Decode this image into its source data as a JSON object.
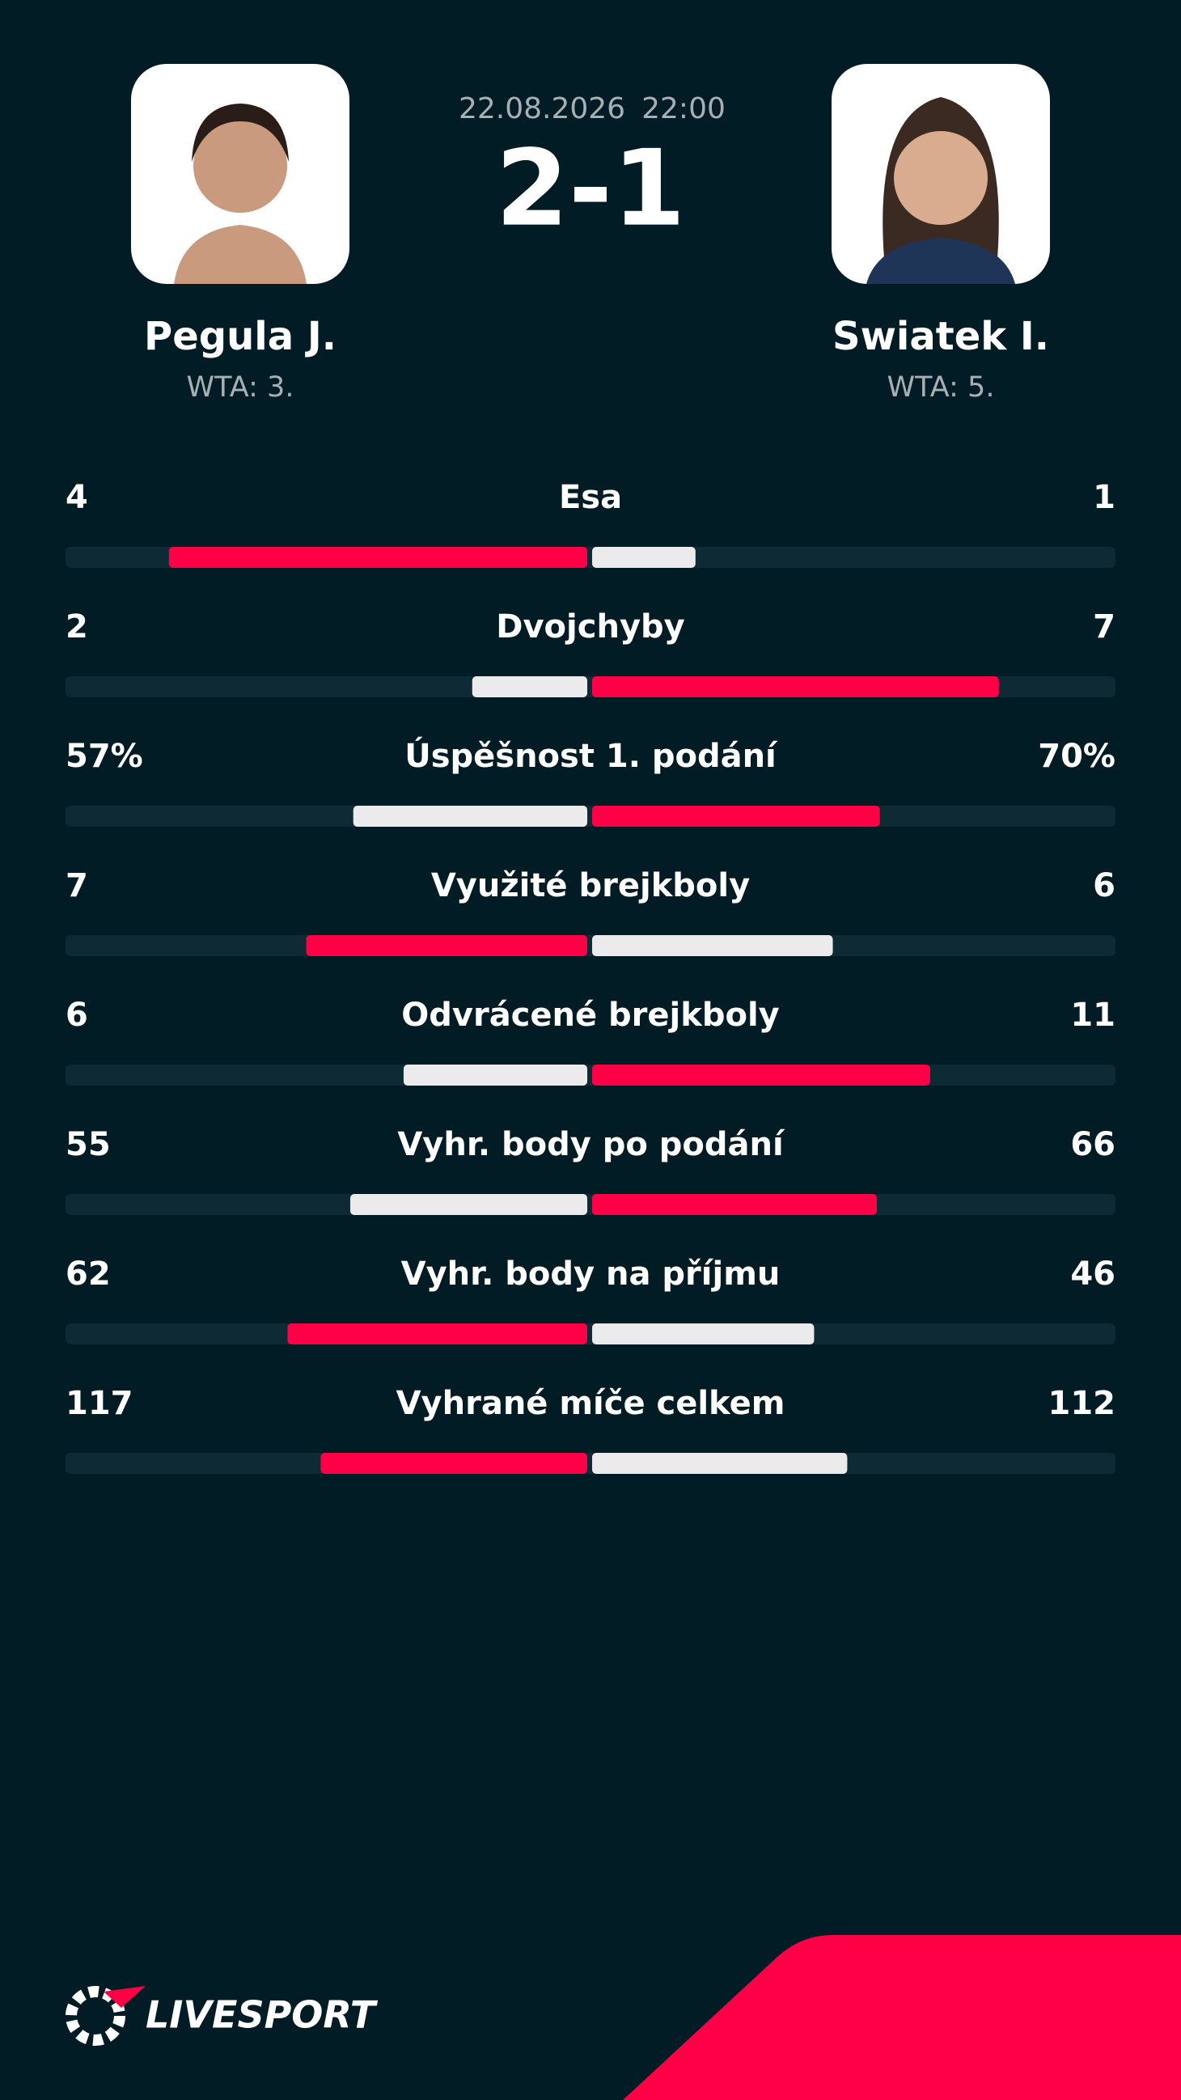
{
  "header": {
    "date": "22.08.2026",
    "time": "22:00",
    "score": "2-1"
  },
  "players": [
    {
      "name": "Pegula J.",
      "rank": "WTA: 3."
    },
    {
      "name": "Swiatek I.",
      "rank": "WTA: 5."
    }
  ],
  "stats": [
    {
      "label": "Esa",
      "home": 4,
      "away": 1
    },
    {
      "label": "Dvojchyby",
      "home": 2,
      "away": 7
    },
    {
      "label": "Úspěšnost 1. podání",
      "home": {
        "value": 57,
        "label": "57%"
      },
      "away": {
        "value": 70,
        "label": "70%"
      }
    },
    {
      "label": "Využité brejkboly",
      "home": 7,
      "away": 6
    },
    {
      "label": "Odvrácené brejkboly",
      "home": 6,
      "away": 11
    },
    {
      "label": "Vyhr. body po podání",
      "home": 55,
      "away": 66
    },
    {
      "label": "Vyhr. body na příjmu",
      "home": 62,
      "away": 46
    },
    {
      "label": "Vyhrané míče celkem",
      "home": 117,
      "away": 112
    }
  ],
  "brand": "LIVESPORT"
}
